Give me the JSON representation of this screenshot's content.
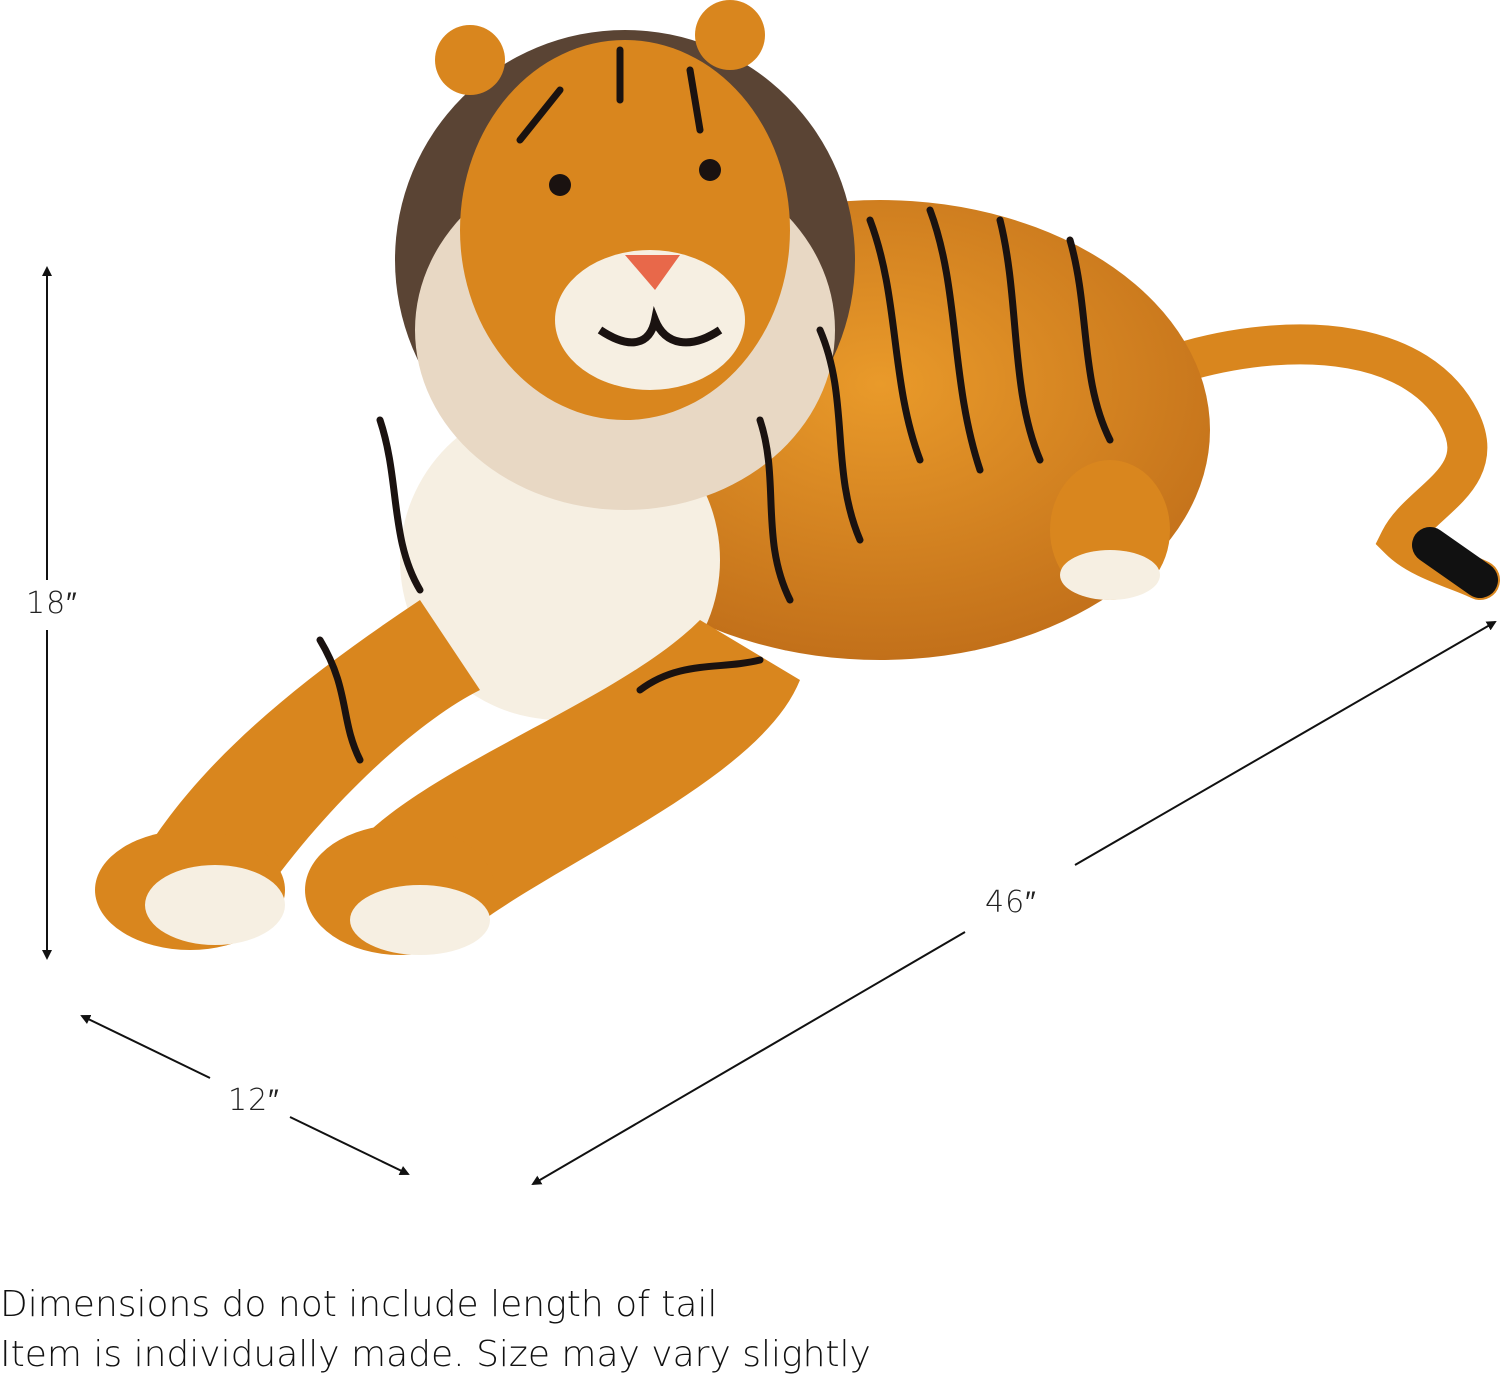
{
  "dimensions": {
    "height": "18″",
    "depth": "12″",
    "length": "46″"
  },
  "notes": [
    "Dimensions do not include length of tail",
    "Item is individually made.  Size may vary slightly"
  ],
  "colors": {
    "fur": "#d9861e",
    "stripe": "#1a1210",
    "belly": "#f6efe2",
    "mane": "#5a4434",
    "nose": "#e8684a",
    "arrow": "#111111"
  }
}
